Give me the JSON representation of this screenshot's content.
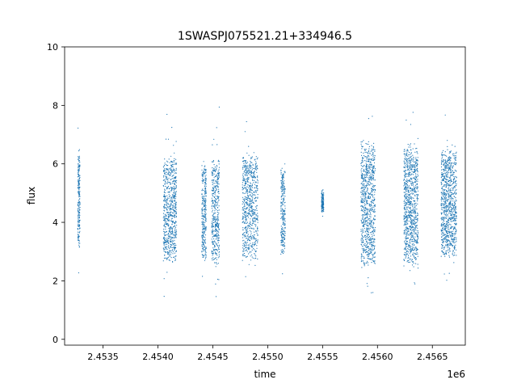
{
  "chart_data": {
    "type": "scatter",
    "title": "1SWASPJ075521.21+334946.5",
    "xlabel": "time",
    "ylabel": "flux",
    "x_offset_label": "1e6",
    "xlim": [
      2453150,
      2456800
    ],
    "ylim": [
      -0.2,
      10
    ],
    "x_ticks": [
      2453500,
      2454000,
      2454500,
      2455000,
      2455500,
      2456000,
      2456500
    ],
    "x_tick_labels": [
      "2.4535",
      "2.4540",
      "2.4545",
      "2.4550",
      "2.4555",
      "2.4560",
      "2.4565"
    ],
    "y_ticks": [
      0,
      2,
      4,
      6,
      8,
      10
    ],
    "y_tick_labels": [
      "0",
      "2",
      "4",
      "6",
      "8",
      "10"
    ],
    "grid": false,
    "legend": "none",
    "point_color": "#1f77b4",
    "series": [
      {
        "observing_seasons": [
          {
            "x": [
              2453270,
              2453290
            ],
            "y": [
              3.0,
              6.5
            ],
            "density": 0.3
          },
          {
            "x": [
              2454050,
              2454170
            ],
            "y": [
              2.5,
              6.3
            ],
            "density": 1.0
          },
          {
            "x": [
              2454400,
              2454440
            ],
            "y": [
              2.6,
              6.2
            ],
            "density": 0.4
          },
          {
            "x": [
              2454490,
              2454560
            ],
            "y": [
              2.5,
              6.3
            ],
            "density": 0.6
          },
          {
            "x": [
              2454770,
              2454910
            ],
            "y": [
              2.6,
              6.4
            ],
            "density": 1.0
          },
          {
            "x": [
              2455120,
              2455160
            ],
            "y": [
              2.8,
              6.0
            ],
            "density": 0.35
          },
          {
            "x": [
              2455490,
              2455510
            ],
            "y": [
              4.3,
              5.1
            ],
            "density": 0.2
          },
          {
            "x": [
              2455850,
              2455980
            ],
            "y": [
              2.4,
              6.8
            ],
            "density": 1.2
          },
          {
            "x": [
              2456240,
              2456370
            ],
            "y": [
              2.4,
              6.7
            ],
            "density": 1.3
          },
          {
            "x": [
              2456580,
              2456720
            ],
            "y": [
              2.7,
              6.6
            ],
            "density": 1.3
          }
        ]
      }
    ]
  }
}
